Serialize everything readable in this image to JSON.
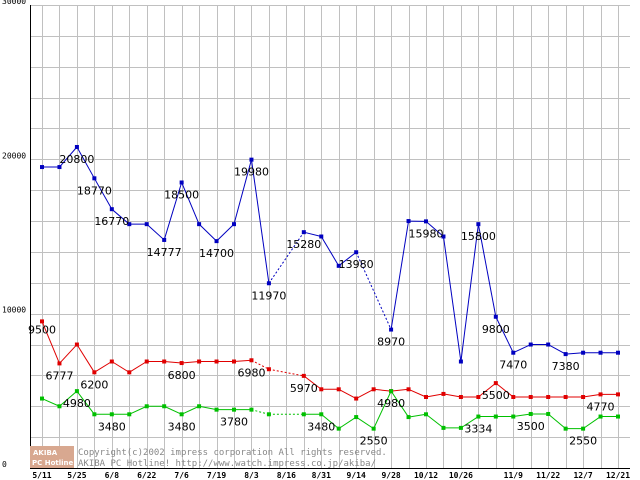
{
  "chart_data": {
    "type": "line",
    "title": "",
    "xlabel": "",
    "ylabel": "",
    "ylim": [
      0,
      30000
    ],
    "y_ticks": [
      0,
      10000,
      20000,
      30000
    ],
    "grid": true,
    "x": [
      "5/11",
      "5/18",
      "5/25",
      "6/1",
      "6/8",
      "6/15",
      "6/22",
      "6/29",
      "7/6",
      "7/13",
      "7/19",
      "7/26",
      "8/3",
      "8/10",
      "8/16",
      "8/24",
      "8/31",
      "9/7",
      "9/14",
      "9/21",
      "9/28",
      "10/5",
      "10/12",
      "10/19",
      "10/26",
      "11/2",
      "11/5",
      "11/9",
      "11/15",
      "11/22",
      "11/29",
      "12/7",
      "12/14",
      "12/21"
    ],
    "x_tick_labels": [
      "5/11",
      "5/25",
      "6/8",
      "6/22",
      "7/6",
      "7/19",
      "8/3",
      "8/16",
      "8/31",
      "9/14",
      "9/28",
      "10/12",
      "10/26",
      "11/9",
      "11/22",
      "12/7",
      "12/21"
    ],
    "series": [
      {
        "color": "#0000c0",
        "values": [
          19500,
          19500,
          20800,
          18770,
          16770,
          15800,
          15800,
          14777,
          18500,
          15800,
          14700,
          15800,
          19980,
          11970,
          null,
          15280,
          15000,
          13100,
          13980,
          null,
          8970,
          16000,
          15980,
          15000,
          6900,
          15800,
          9800,
          7470,
          8000,
          8000,
          7380,
          7470,
          7470,
          7470
        ],
        "dashed_segments": [
          [
            13,
            15
          ],
          [
            18,
            20
          ]
        ]
      },
      {
        "color": "#e00000",
        "values": [
          9500,
          6777,
          8000,
          6200,
          6900,
          6200,
          6900,
          6900,
          6800,
          6900,
          6900,
          6900,
          6980,
          6400,
          null,
          5970,
          5100,
          5100,
          4500,
          5100,
          4980,
          5100,
          4600,
          4800,
          4600,
          4600,
          5500,
          4600,
          4600,
          4600,
          4600,
          4600,
          4770,
          4770
        ],
        "dashed_segments": [
          [
            12,
            15
          ]
        ]
      },
      {
        "color": "#00c000",
        "values": [
          4500,
          4000,
          4980,
          3480,
          3480,
          3480,
          4000,
          4000,
          3480,
          4000,
          3780,
          3780,
          3780,
          3480,
          null,
          3480,
          3480,
          2550,
          3300,
          2550,
          4980,
          3300,
          3480,
          2600,
          2600,
          3334,
          3334,
          3334,
          3500,
          3500,
          2550,
          2550,
          3334,
          3334
        ],
        "dashed_segments": [
          [
            12,
            15
          ]
        ]
      }
    ],
    "data_labels": [
      {
        "series": 0,
        "index": 2,
        "text": "20800"
      },
      {
        "series": 0,
        "index": 3,
        "text": "18770"
      },
      {
        "series": 0,
        "index": 4,
        "text": "16770"
      },
      {
        "series": 0,
        "index": 7,
        "text": "14777"
      },
      {
        "series": 0,
        "index": 8,
        "text": "18500"
      },
      {
        "series": 0,
        "index": 10,
        "text": "14700"
      },
      {
        "series": 0,
        "index": 12,
        "text": "19980"
      },
      {
        "series": 0,
        "index": 13,
        "text": "11970"
      },
      {
        "series": 0,
        "index": 15,
        "text": "15280"
      },
      {
        "series": 0,
        "index": 18,
        "text": "13980"
      },
      {
        "series": 0,
        "index": 20,
        "text": "8970"
      },
      {
        "series": 0,
        "index": 22,
        "text": "15980"
      },
      {
        "series": 0,
        "index": 25,
        "text": "15800"
      },
      {
        "series": 0,
        "index": 26,
        "text": "9800"
      },
      {
        "series": 0,
        "index": 27,
        "text": "7470"
      },
      {
        "series": 0,
        "index": 30,
        "text": "7380"
      },
      {
        "series": 1,
        "index": 0,
        "text": "9500"
      },
      {
        "series": 1,
        "index": 1,
        "text": "6777"
      },
      {
        "series": 1,
        "index": 3,
        "text": "6200"
      },
      {
        "series": 1,
        "index": 8,
        "text": "6800"
      },
      {
        "series": 1,
        "index": 12,
        "text": "6980"
      },
      {
        "series": 1,
        "index": 15,
        "text": "5970"
      },
      {
        "series": 1,
        "index": 26,
        "text": "5500"
      },
      {
        "series": 1,
        "index": 32,
        "text": "4770"
      },
      {
        "series": 2,
        "index": 2,
        "text": "4980"
      },
      {
        "series": 2,
        "index": 4,
        "text": "3480"
      },
      {
        "series": 2,
        "index": 8,
        "text": "3480"
      },
      {
        "series": 2,
        "index": 11,
        "text": "3780"
      },
      {
        "series": 2,
        "index": 16,
        "text": "3480"
      },
      {
        "series": 2,
        "index": 19,
        "text": "2550"
      },
      {
        "series": 2,
        "index": 20,
        "text": "4980"
      },
      {
        "series": 2,
        "index": 25,
        "text": "3334"
      },
      {
        "series": 2,
        "index": 28,
        "text": "3500"
      },
      {
        "series": 2,
        "index": 31,
        "text": "2550"
      }
    ]
  },
  "watermark": {
    "logo_top": "AKIBA",
    "logo_bottom": "PC Hotline!",
    "line1": "Copyright(c)2002 impress corporation All rights reserved.",
    "line2": "AKIBA PC Hotline!  http://www.watch.impress.co.jp/akiba/"
  }
}
